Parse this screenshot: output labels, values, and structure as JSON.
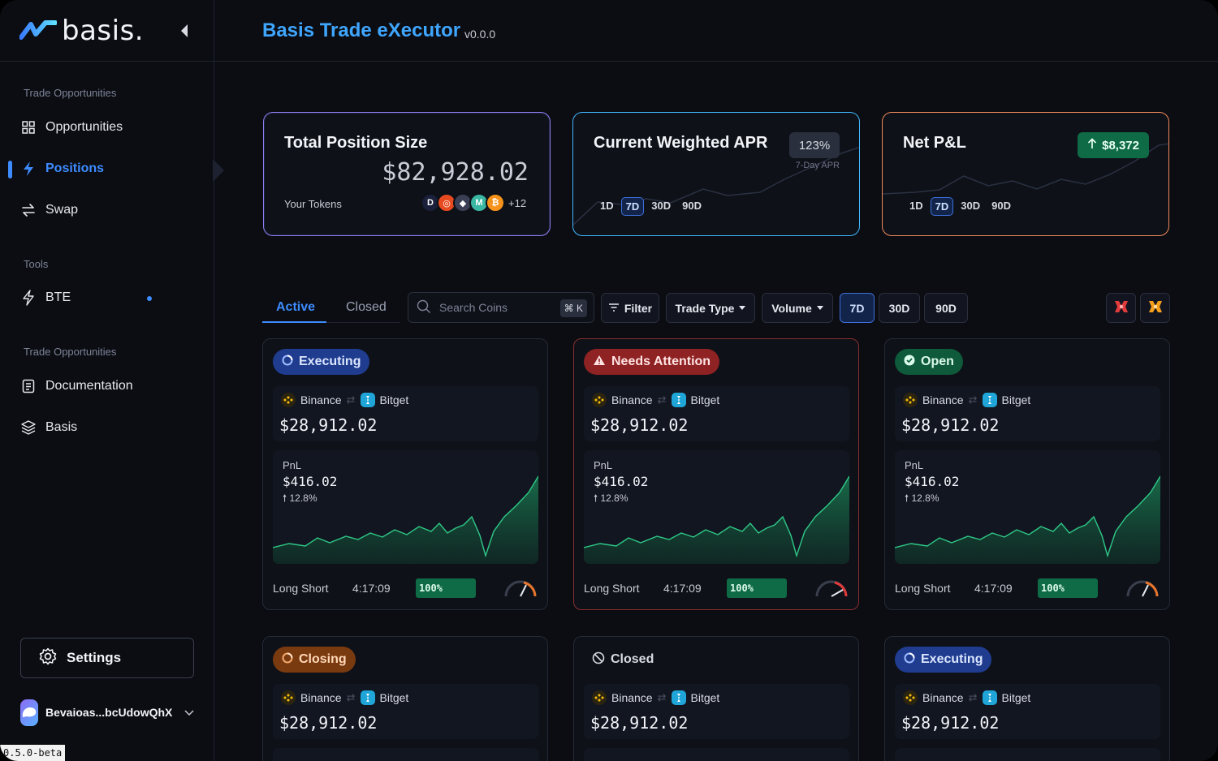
{
  "brand": {
    "name": "basis."
  },
  "header": {
    "title": "Basis Trade eXecutor",
    "version": "v0.0.0"
  },
  "sidebar": {
    "section_1": "Trade Opportunities",
    "items_1": [
      {
        "label": "Opportunities",
        "icon": "grid-icon"
      },
      {
        "label": "Positions",
        "icon": "bolt-icon",
        "active": true
      },
      {
        "label": "Swap",
        "icon": "swap-icon"
      }
    ],
    "section_2": "Tools",
    "items_2": [
      {
        "label": "BTE",
        "icon": "lightning-outline-icon"
      }
    ],
    "section_3": "Trade Opportunities",
    "items_3": [
      {
        "label": "Documentation",
        "icon": "document-icon"
      },
      {
        "label": "Basis",
        "icon": "layers-icon"
      }
    ],
    "settings_label": "Settings",
    "account": "Bevaioas...bcUdowQhX",
    "build_version": "0.5.0-beta"
  },
  "stats": {
    "total": {
      "title": "Total Position Size",
      "value": "$82,928.02",
      "tokens_label": "Your Tokens",
      "more_tokens": "+12"
    },
    "apr": {
      "title": "Current Weighted APR",
      "badge": "123%",
      "sub": "7-Day APR",
      "ranges": [
        "1D",
        "7D",
        "30D",
        "90D"
      ],
      "selected": "7D"
    },
    "pnl": {
      "title": "Net P&L",
      "badge": "$8,372",
      "ranges": [
        "1D",
        "7D",
        "30D",
        "90D"
      ],
      "selected": "7D"
    }
  },
  "toolbar": {
    "tabs": [
      "Active",
      "Closed"
    ],
    "search_placeholder": "Search Coins",
    "shortcut": "⌘ K",
    "filter": "Filter",
    "trade_type": "Trade Type",
    "volume": "Volume",
    "periods": [
      "7D",
      "30D",
      "90D"
    ],
    "selected_period": "7D"
  },
  "positions": [
    {
      "status": "Executing",
      "long": "Binance",
      "short": "Bitget",
      "size": "$28,912.02",
      "pnl_label": "PnL",
      "pnl": "$416.02",
      "pnl_pct": "12.8%",
      "side": "Long Short",
      "time": "4:17:09",
      "progress": "100%"
    },
    {
      "status": "Needs Attention",
      "long": "Binance",
      "short": "Bitget",
      "size": "$28,912.02",
      "pnl_label": "PnL",
      "pnl": "$416.02",
      "pnl_pct": "12.8%",
      "side": "Long Short",
      "time": "4:17:09",
      "progress": "100%"
    },
    {
      "status": "Open",
      "long": "Binance",
      "short": "Bitget",
      "size": "$28,912.02",
      "pnl_label": "PnL",
      "pnl": "$416.02",
      "pnl_pct": "12.8%",
      "side": "Long Short",
      "time": "4:17:09",
      "progress": "100%"
    },
    {
      "status": "Closing",
      "long": "Binance",
      "short": "Bitget",
      "size": "$28,912.02"
    },
    {
      "status": "Closed",
      "long": "Binance",
      "short": "Bitget",
      "size": "$28,912.02"
    },
    {
      "status": "Executing",
      "long": "Binance",
      "short": "Bitget",
      "size": "$28,912.02"
    }
  ],
  "colors": {
    "accent": "#3d8bff",
    "title": "#3fa6ff",
    "positive": "#0f6b45",
    "danger": "#8f2222"
  }
}
